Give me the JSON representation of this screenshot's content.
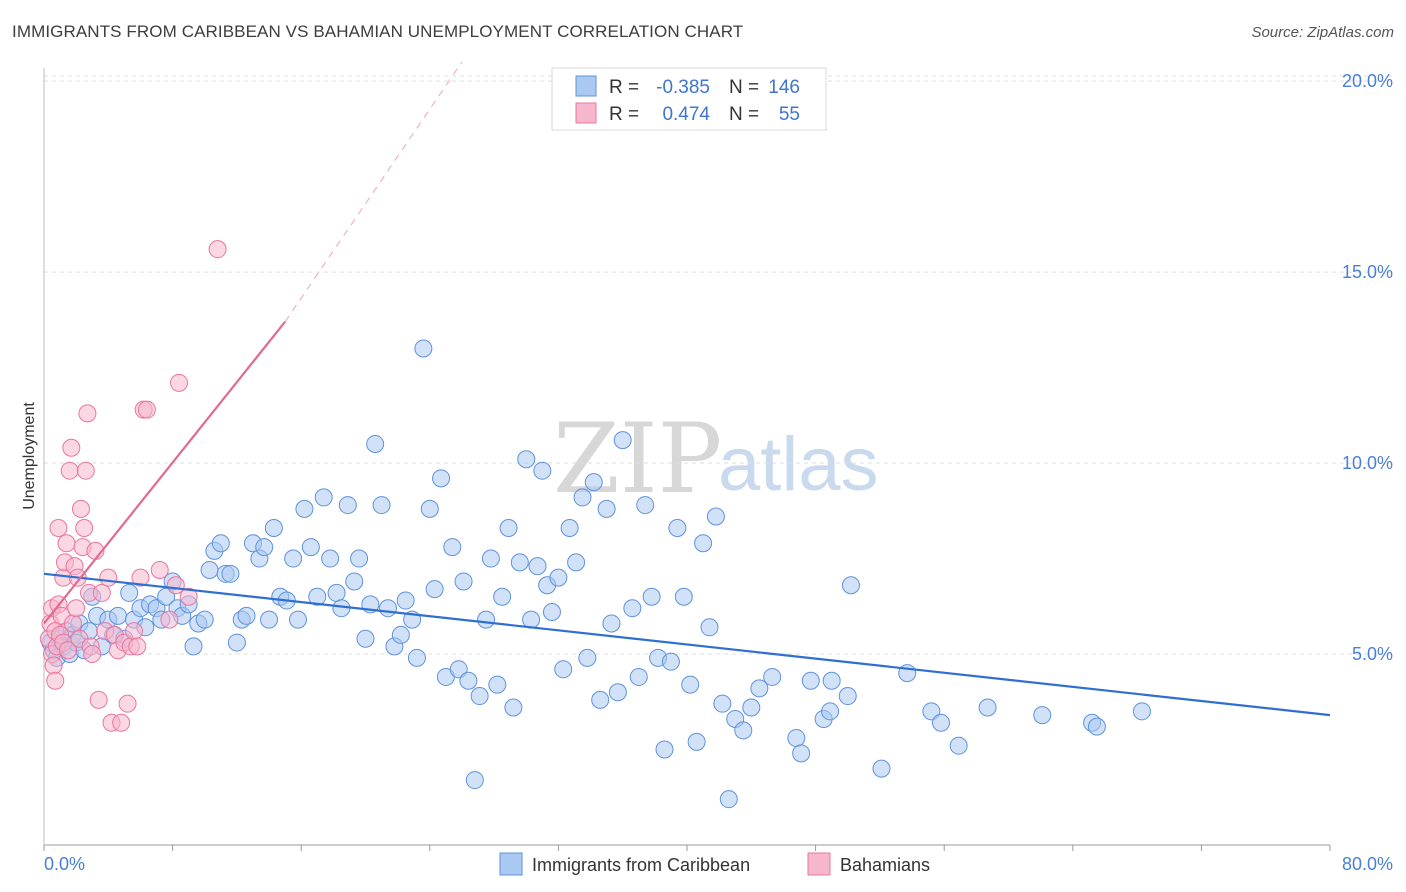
{
  "title": "IMMIGRANTS FROM CARIBBEAN VS BAHAMIAN UNEMPLOYMENT CORRELATION CHART",
  "source": "Source: ZipAtlas.com",
  "watermark": {
    "zip": "ZIP",
    "atlas": "atlas"
  },
  "colors": {
    "blue_fill": "#a9c8f2",
    "blue_stroke": "#5f93db",
    "blue_line": "#2f6fd0",
    "pink_fill": "#f6b7cc",
    "pink_stroke": "#e8779f",
    "pink_line": "#e06a93",
    "grid": "#dddddd",
    "tick_text": "#4a7fd6"
  },
  "legend": {
    "rows": [
      {
        "r_label": "R =",
        "r_value": "-0.385",
        "n_label": "N =",
        "n_value": "146"
      },
      {
        "r_label": "R =",
        "r_value": "0.474",
        "n_label": "N =",
        "n_value": "55"
      }
    ]
  },
  "chart_data": {
    "type": "scatter",
    "title": "IMMIGRANTS FROM CARIBBEAN VS BAHAMIAN UNEMPLOYMENT CORRELATION CHART",
    "xlabel": "",
    "ylabel": "Unemployment",
    "xlim": [
      0,
      80
    ],
    "ylim": [
      0,
      20.5
    ],
    "x_tick_labels": {
      "min": "0.0%",
      "max": "80.0%"
    },
    "y_ticks": [
      {
        "value": 5,
        "label": "5.0%"
      },
      {
        "value": 10,
        "label": "10.0%"
      },
      {
        "value": 15,
        "label": "15.0%"
      },
      {
        "value": 20,
        "label": "20.0%"
      }
    ],
    "series": [
      {
        "name": "Immigrants from Caribbean",
        "color": "#a9c8f2",
        "r": -0.385,
        "n": 146,
        "trend": {
          "x": [
            0,
            80
          ],
          "y": [
            7.1,
            3.4
          ]
        },
        "points": [
          [
            0.4,
            5.3
          ],
          [
            0.6,
            5.1
          ],
          [
            0.8,
            4.9
          ],
          [
            1.0,
            5.4
          ],
          [
            1.2,
            5.2
          ],
          [
            1.4,
            5.6
          ],
          [
            1.6,
            5.0
          ],
          [
            1.8,
            5.5
          ],
          [
            2.0,
            5.3
          ],
          [
            2.2,
            5.8
          ],
          [
            2.5,
            5.1
          ],
          [
            2.8,
            5.6
          ],
          [
            3.0,
            6.5
          ],
          [
            3.3,
            6.0
          ],
          [
            3.6,
            5.2
          ],
          [
            4.0,
            5.9
          ],
          [
            4.3,
            5.5
          ],
          [
            4.6,
            6.0
          ],
          [
            5.0,
            5.4
          ],
          [
            5.3,
            6.6
          ],
          [
            5.6,
            5.9
          ],
          [
            6.0,
            6.2
          ],
          [
            6.3,
            5.7
          ],
          [
            6.6,
            6.3
          ],
          [
            7.0,
            6.2
          ],
          [
            7.3,
            5.9
          ],
          [
            7.6,
            6.5
          ],
          [
            8.0,
            6.9
          ],
          [
            8.3,
            6.2
          ],
          [
            8.6,
            6.0
          ],
          [
            9.0,
            6.3
          ],
          [
            9.3,
            5.2
          ],
          [
            9.6,
            5.8
          ],
          [
            10.0,
            5.9
          ],
          [
            10.3,
            7.2
          ],
          [
            10.6,
            7.7
          ],
          [
            11.0,
            7.9
          ],
          [
            11.3,
            7.1
          ],
          [
            11.6,
            7.1
          ],
          [
            12.0,
            5.3
          ],
          [
            12.3,
            5.9
          ],
          [
            12.6,
            6.0
          ],
          [
            13.0,
            7.9
          ],
          [
            13.4,
            7.5
          ],
          [
            13.7,
            7.8
          ],
          [
            14.0,
            5.9
          ],
          [
            14.3,
            8.3
          ],
          [
            14.7,
            6.5
          ],
          [
            15.1,
            6.4
          ],
          [
            15.5,
            7.5
          ],
          [
            15.8,
            5.9
          ],
          [
            16.2,
            8.8
          ],
          [
            16.6,
            7.8
          ],
          [
            17.0,
            6.5
          ],
          [
            17.4,
            9.1
          ],
          [
            17.8,
            7.5
          ],
          [
            18.2,
            6.6
          ],
          [
            18.5,
            6.2
          ],
          [
            18.9,
            8.9
          ],
          [
            19.3,
            6.9
          ],
          [
            19.6,
            7.5
          ],
          [
            20.0,
            5.4
          ],
          [
            20.3,
            6.3
          ],
          [
            20.6,
            10.5
          ],
          [
            21.0,
            8.9
          ],
          [
            21.4,
            6.2
          ],
          [
            21.8,
            5.2
          ],
          [
            22.2,
            5.5
          ],
          [
            22.5,
            6.4
          ],
          [
            22.9,
            5.9
          ],
          [
            23.2,
            4.9
          ],
          [
            23.6,
            13.0
          ],
          [
            24.0,
            8.8
          ],
          [
            24.3,
            6.7
          ],
          [
            24.7,
            9.6
          ],
          [
            25.0,
            4.4
          ],
          [
            25.4,
            7.8
          ],
          [
            25.8,
            4.6
          ],
          [
            26.1,
            6.9
          ],
          [
            26.4,
            4.3
          ],
          [
            26.8,
            1.7
          ],
          [
            27.1,
            3.9
          ],
          [
            27.5,
            5.9
          ],
          [
            27.8,
            7.5
          ],
          [
            28.2,
            4.2
          ],
          [
            28.5,
            6.5
          ],
          [
            28.9,
            8.3
          ],
          [
            29.2,
            3.6
          ],
          [
            29.6,
            7.4
          ],
          [
            30.0,
            10.1
          ],
          [
            30.3,
            5.9
          ],
          [
            30.7,
            7.3
          ],
          [
            31.0,
            9.8
          ],
          [
            31.3,
            6.8
          ],
          [
            31.6,
            6.1
          ],
          [
            32.0,
            7.0
          ],
          [
            32.3,
            4.6
          ],
          [
            32.7,
            8.3
          ],
          [
            33.1,
            7.4
          ],
          [
            33.5,
            9.1
          ],
          [
            33.8,
            4.9
          ],
          [
            34.2,
            9.5
          ],
          [
            34.6,
            3.8
          ],
          [
            35.0,
            8.8
          ],
          [
            35.3,
            5.8
          ],
          [
            35.7,
            4.0
          ],
          [
            36.0,
            10.6
          ],
          [
            36.6,
            6.2
          ],
          [
            37.0,
            4.4
          ],
          [
            37.4,
            8.9
          ],
          [
            37.8,
            6.5
          ],
          [
            38.2,
            4.9
          ],
          [
            38.6,
            2.5
          ],
          [
            39.0,
            4.8
          ],
          [
            39.4,
            8.3
          ],
          [
            39.8,
            6.5
          ],
          [
            40.2,
            4.2
          ],
          [
            40.6,
            2.7
          ],
          [
            41.0,
            7.9
          ],
          [
            41.4,
            5.7
          ],
          [
            41.8,
            8.6
          ],
          [
            42.2,
            3.7
          ],
          [
            42.6,
            1.2
          ],
          [
            43.0,
            3.3
          ],
          [
            43.5,
            3.0
          ],
          [
            44.0,
            3.6
          ],
          [
            44.5,
            4.1
          ],
          [
            45.3,
            4.4
          ],
          [
            46.8,
            2.8
          ],
          [
            47.1,
            2.4
          ],
          [
            47.7,
            4.3
          ],
          [
            48.5,
            3.3
          ],
          [
            48.9,
            3.5
          ],
          [
            49.0,
            4.3
          ],
          [
            50.0,
            3.9
          ],
          [
            50.2,
            6.8
          ],
          [
            52.1,
            2.0
          ],
          [
            53.7,
            4.5
          ],
          [
            55.2,
            3.5
          ],
          [
            55.8,
            3.2
          ],
          [
            56.9,
            2.6
          ],
          [
            58.7,
            3.6
          ],
          [
            62.1,
            3.4
          ],
          [
            65.2,
            3.2
          ],
          [
            65.5,
            3.1
          ],
          [
            68.3,
            3.5
          ]
        ]
      },
      {
        "name": "Bahamians",
        "color": "#f6b7cc",
        "r": 0.474,
        "n": 55,
        "trend": {
          "x": [
            0,
            15
          ],
          "y": [
            5.8,
            13.7
          ],
          "dashed_to": {
            "x": 26,
            "y": 20.5
          }
        },
        "points": [
          [
            0.3,
            5.4
          ],
          [
            0.4,
            5.8
          ],
          [
            0.5,
            5.0
          ],
          [
            0.5,
            6.2
          ],
          [
            0.6,
            4.7
          ],
          [
            0.7,
            5.6
          ],
          [
            0.7,
            4.3
          ],
          [
            0.8,
            5.2
          ],
          [
            0.9,
            8.3
          ],
          [
            0.9,
            6.3
          ],
          [
            1.0,
            5.5
          ],
          [
            1.1,
            6.0
          ],
          [
            1.2,
            5.3
          ],
          [
            1.2,
            7.0
          ],
          [
            1.3,
            7.4
          ],
          [
            1.4,
            7.9
          ],
          [
            1.5,
            5.1
          ],
          [
            1.6,
            9.8
          ],
          [
            1.7,
            10.4
          ],
          [
            1.8,
            5.8
          ],
          [
            1.9,
            7.3
          ],
          [
            2.0,
            6.2
          ],
          [
            2.1,
            7.0
          ],
          [
            2.2,
            5.4
          ],
          [
            2.3,
            8.8
          ],
          [
            2.4,
            7.8
          ],
          [
            2.5,
            8.3
          ],
          [
            2.6,
            9.8
          ],
          [
            2.7,
            11.3
          ],
          [
            2.8,
            6.6
          ],
          [
            2.9,
            5.2
          ],
          [
            3.0,
            5.0
          ],
          [
            3.2,
            7.7
          ],
          [
            3.4,
            3.8
          ],
          [
            3.6,
            6.6
          ],
          [
            3.8,
            5.6
          ],
          [
            4.0,
            7.0
          ],
          [
            4.2,
            3.2
          ],
          [
            4.4,
            5.5
          ],
          [
            4.6,
            5.1
          ],
          [
            4.8,
            3.2
          ],
          [
            5.0,
            5.3
          ],
          [
            5.2,
            3.7
          ],
          [
            5.4,
            5.2
          ],
          [
            5.6,
            5.6
          ],
          [
            5.8,
            5.2
          ],
          [
            6.0,
            7.0
          ],
          [
            6.2,
            11.4
          ],
          [
            6.4,
            11.4
          ],
          [
            7.2,
            7.2
          ],
          [
            7.8,
            5.9
          ],
          [
            8.2,
            6.8
          ],
          [
            8.4,
            12.1
          ],
          [
            9.0,
            6.5
          ],
          [
            10.8,
            15.6
          ]
        ]
      }
    ],
    "legend_placement": "top-center"
  },
  "bottom_legend": {
    "series1": "Immigrants from Caribbean",
    "series2": "Bahamians"
  }
}
